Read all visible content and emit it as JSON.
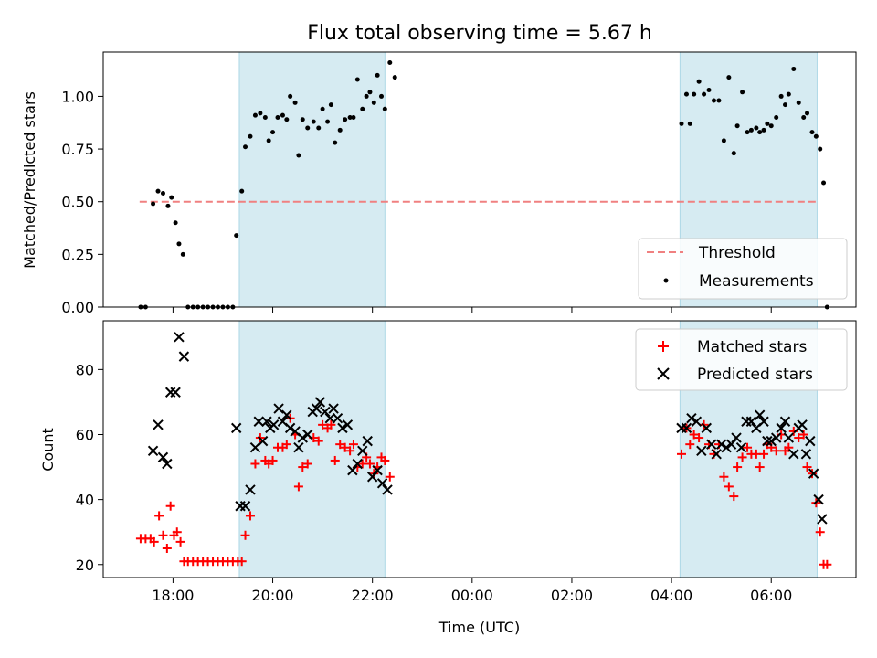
{
  "chart_data": [
    {
      "type": "scatter",
      "title": "Flux total observing time = 5.67 h",
      "ylabel": "Matched/Predicted stars",
      "ylim": [
        0,
        1.21
      ],
      "yticks": [
        "0.00",
        "0.25",
        "0.50",
        "0.75",
        "1.00"
      ],
      "xlim_hours": [
        16.6,
        31.7
      ],
      "shaded_intervals_hours": [
        [
          19.33,
          22.25
        ],
        [
          28.17,
          30.92
        ]
      ],
      "threshold": {
        "name": "Threshold",
        "y": 0.5,
        "x_range_hours": [
          17.33,
          30.92
        ],
        "color": "#f08080"
      },
      "legend": {
        "placement": "lower-right",
        "entries": [
          "Threshold",
          "Measurements"
        ]
      },
      "series": [
        {
          "name": "Measurements",
          "color": "#000000",
          "points": [
            [
              17.35,
              0
            ],
            [
              17.45,
              0
            ],
            [
              17.6,
              0.49
            ],
            [
              17.7,
              0.55
            ],
            [
              17.8,
              0.54
            ],
            [
              17.9,
              0.48
            ],
            [
              17.97,
              0.52
            ],
            [
              18.05,
              0.4
            ],
            [
              18.12,
              0.3
            ],
            [
              18.2,
              0.25
            ],
            [
              18.3,
              0
            ],
            [
              18.4,
              0
            ],
            [
              18.5,
              0
            ],
            [
              18.6,
              0
            ],
            [
              18.7,
              0
            ],
            [
              18.8,
              0
            ],
            [
              18.9,
              0
            ],
            [
              19.0,
              0
            ],
            [
              19.1,
              0
            ],
            [
              19.2,
              0
            ],
            [
              19.27,
              0.34
            ],
            [
              19.38,
              0.55
            ],
            [
              19.45,
              0.76
            ],
            [
              19.55,
              0.81
            ],
            [
              19.65,
              0.91
            ],
            [
              19.75,
              0.92
            ],
            [
              19.85,
              0.9
            ],
            [
              19.92,
              0.79
            ],
            [
              20.0,
              0.83
            ],
            [
              20.1,
              0.9
            ],
            [
              20.2,
              0.91
            ],
            [
              20.28,
              0.89
            ],
            [
              20.35,
              1.0
            ],
            [
              20.45,
              0.97
            ],
            [
              20.52,
              0.72
            ],
            [
              20.6,
              0.89
            ],
            [
              20.7,
              0.85
            ],
            [
              20.82,
              0.88
            ],
            [
              20.92,
              0.85
            ],
            [
              21.0,
              0.94
            ],
            [
              21.1,
              0.88
            ],
            [
              21.17,
              0.96
            ],
            [
              21.25,
              0.78
            ],
            [
              21.35,
              0.84
            ],
            [
              21.45,
              0.89
            ],
            [
              21.55,
              0.9
            ],
            [
              21.62,
              0.9
            ],
            [
              21.7,
              1.08
            ],
            [
              21.8,
              0.94
            ],
            [
              21.88,
              1.0
            ],
            [
              21.95,
              1.02
            ],
            [
              22.03,
              0.97
            ],
            [
              22.1,
              1.1
            ],
            [
              22.18,
              1.0
            ],
            [
              22.25,
              0.94
            ],
            [
              22.35,
              1.16
            ],
            [
              22.45,
              1.09
            ],
            [
              28.2,
              0.87
            ],
            [
              28.3,
              1.01
            ],
            [
              28.37,
              0.87
            ],
            [
              28.45,
              1.01
            ],
            [
              28.55,
              1.07
            ],
            [
              28.65,
              1.01
            ],
            [
              28.75,
              1.03
            ],
            [
              28.85,
              0.98
            ],
            [
              28.95,
              0.98
            ],
            [
              29.05,
              0.79
            ],
            [
              29.15,
              1.09
            ],
            [
              29.25,
              0.73
            ],
            [
              29.32,
              0.86
            ],
            [
              29.42,
              1.02
            ],
            [
              29.52,
              0.83
            ],
            [
              29.6,
              0.84
            ],
            [
              29.7,
              0.85
            ],
            [
              29.77,
              0.83
            ],
            [
              29.85,
              0.84
            ],
            [
              29.92,
              0.87
            ],
            [
              30.0,
              0.86
            ],
            [
              30.1,
              0.9
            ],
            [
              30.2,
              1.0
            ],
            [
              30.28,
              0.96
            ],
            [
              30.35,
              1.01
            ],
            [
              30.45,
              1.13
            ],
            [
              30.55,
              0.97
            ],
            [
              30.65,
              0.9
            ],
            [
              30.72,
              0.92
            ],
            [
              30.82,
              0.83
            ],
            [
              30.9,
              0.81
            ],
            [
              30.98,
              0.75
            ],
            [
              31.05,
              0.59
            ],
            [
              31.12,
              0
            ]
          ]
        }
      ]
    },
    {
      "type": "scatter",
      "xlabel": "Time (UTC)",
      "ylabel": "Count",
      "ylim": [
        16,
        95
      ],
      "yticks": [
        "20",
        "40",
        "60",
        "80"
      ],
      "xticks": [
        "18:00",
        "20:00",
        "22:00",
        "00:00",
        "02:00",
        "04:00",
        "06:00"
      ],
      "xticks_hours": [
        18,
        20,
        22,
        24,
        26,
        28,
        30
      ],
      "legend": {
        "placement": "top-right",
        "entries": [
          "Matched stars",
          "Predicted stars"
        ]
      },
      "series": [
        {
          "name": "Matched stars",
          "marker": "plus",
          "color": "#ff0000",
          "points": [
            [
              17.35,
              28
            ],
            [
              17.45,
              28
            ],
            [
              17.55,
              28
            ],
            [
              17.62,
              27
            ],
            [
              17.72,
              35
            ],
            [
              17.8,
              29
            ],
            [
              17.88,
              25
            ],
            [
              17.95,
              38
            ],
            [
              18.02,
              29
            ],
            [
              18.08,
              30
            ],
            [
              18.15,
              27
            ],
            [
              18.22,
              21
            ],
            [
              18.3,
              21
            ],
            [
              18.4,
              21
            ],
            [
              18.5,
              21
            ],
            [
              18.6,
              21
            ],
            [
              18.7,
              21
            ],
            [
              18.8,
              21
            ],
            [
              18.9,
              21
            ],
            [
              19.0,
              21
            ],
            [
              19.1,
              21
            ],
            [
              19.2,
              21
            ],
            [
              19.3,
              21
            ],
            [
              19.38,
              21
            ],
            [
              19.45,
              29
            ],
            [
              19.55,
              35
            ],
            [
              19.65,
              51
            ],
            [
              19.75,
              59
            ],
            [
              19.85,
              52
            ],
            [
              19.92,
              51
            ],
            [
              20.0,
              52
            ],
            [
              20.1,
              56
            ],
            [
              20.2,
              56
            ],
            [
              20.28,
              57
            ],
            [
              20.35,
              65
            ],
            [
              20.45,
              60
            ],
            [
              20.52,
              44
            ],
            [
              20.6,
              50
            ],
            [
              20.7,
              51
            ],
            [
              20.82,
              59
            ],
            [
              20.92,
              58
            ],
            [
              21.0,
              63
            ],
            [
              21.1,
              62
            ],
            [
              21.17,
              63
            ],
            [
              21.25,
              52
            ],
            [
              21.35,
              57
            ],
            [
              21.45,
              56
            ],
            [
              21.55,
              55
            ],
            [
              21.62,
              57
            ],
            [
              21.7,
              50
            ],
            [
              21.8,
              51
            ],
            [
              21.88,
              53
            ],
            [
              21.95,
              51
            ],
            [
              22.03,
              48
            ],
            [
              22.1,
              50
            ],
            [
              22.18,
              53
            ],
            [
              22.25,
              52
            ],
            [
              22.35,
              47
            ],
            [
              28.2,
              54
            ],
            [
              28.3,
              62
            ],
            [
              28.37,
              57
            ],
            [
              28.45,
              60
            ],
            [
              28.55,
              59
            ],
            [
              28.65,
              63
            ],
            [
              28.75,
              57
            ],
            [
              28.85,
              54
            ],
            [
              28.95,
              57
            ],
            [
              29.05,
              47
            ],
            [
              29.15,
              44
            ],
            [
              29.25,
              41
            ],
            [
              29.32,
              50
            ],
            [
              29.42,
              53
            ],
            [
              29.52,
              56
            ],
            [
              29.6,
              54
            ],
            [
              29.7,
              54
            ],
            [
              29.77,
              50
            ],
            [
              29.85,
              54
            ],
            [
              29.92,
              57
            ],
            [
              30.0,
              56
            ],
            [
              30.1,
              55
            ],
            [
              30.2,
              60
            ],
            [
              30.28,
              55
            ],
            [
              30.35,
              56
            ],
            [
              30.45,
              61
            ],
            [
              30.55,
              59
            ],
            [
              30.65,
              60
            ],
            [
              30.72,
              50
            ],
            [
              30.82,
              48
            ],
            [
              30.9,
              39
            ],
            [
              30.98,
              30
            ],
            [
              31.05,
              20
            ],
            [
              31.12,
              20
            ]
          ]
        },
        {
          "name": "Predicted stars",
          "marker": "x",
          "color": "#000000",
          "points": [
            [
              17.6,
              55
            ],
            [
              17.7,
              63
            ],
            [
              17.8,
              53
            ],
            [
              17.88,
              51
            ],
            [
              17.95,
              73
            ],
            [
              18.05,
              73
            ],
            [
              18.12,
              90
            ],
            [
              18.22,
              84
            ],
            [
              19.27,
              62
            ],
            [
              19.35,
              38
            ],
            [
              19.45,
              38
            ],
            [
              19.55,
              43
            ],
            [
              19.65,
              56
            ],
            [
              19.72,
              64
            ],
            [
              19.8,
              58
            ],
            [
              19.88,
              64
            ],
            [
              19.95,
              62
            ],
            [
              20.02,
              63
            ],
            [
              20.12,
              68
            ],
            [
              20.2,
              64
            ],
            [
              20.28,
              66
            ],
            [
              20.35,
              62
            ],
            [
              20.45,
              61
            ],
            [
              20.52,
              56
            ],
            [
              20.6,
              59
            ],
            [
              20.7,
              60
            ],
            [
              20.8,
              67
            ],
            [
              20.88,
              68
            ],
            [
              20.95,
              70
            ],
            [
              21.05,
              67
            ],
            [
              21.15,
              65
            ],
            [
              21.22,
              68
            ],
            [
              21.3,
              65
            ],
            [
              21.4,
              62
            ],
            [
              21.5,
              63
            ],
            [
              21.6,
              49
            ],
            [
              21.7,
              51
            ],
            [
              21.8,
              55
            ],
            [
              21.9,
              58
            ],
            [
              22.0,
              47
            ],
            [
              22.1,
              49
            ],
            [
              22.2,
              45
            ],
            [
              22.3,
              43
            ],
            [
              28.2,
              62
            ],
            [
              28.3,
              62
            ],
            [
              28.4,
              65
            ],
            [
              28.5,
              64
            ],
            [
              28.6,
              55
            ],
            [
              28.7,
              62
            ],
            [
              28.8,
              57
            ],
            [
              28.9,
              54
            ],
            [
              29.0,
              57
            ],
            [
              29.1,
              56
            ],
            [
              29.2,
              57
            ],
            [
              29.3,
              59
            ],
            [
              29.4,
              56
            ],
            [
              29.5,
              64
            ],
            [
              29.6,
              64
            ],
            [
              29.7,
              62
            ],
            [
              29.77,
              66
            ],
            [
              29.85,
              64
            ],
            [
              29.92,
              58
            ],
            [
              30.0,
              58
            ],
            [
              30.1,
              59
            ],
            [
              30.2,
              62
            ],
            [
              30.28,
              64
            ],
            [
              30.35,
              59
            ],
            [
              30.45,
              54
            ],
            [
              30.55,
              62
            ],
            [
              30.62,
              63
            ],
            [
              30.7,
              54
            ],
            [
              30.78,
              58
            ],
            [
              30.85,
              48
            ],
            [
              30.95,
              40
            ],
            [
              31.02,
              34
            ]
          ]
        }
      ]
    }
  ]
}
